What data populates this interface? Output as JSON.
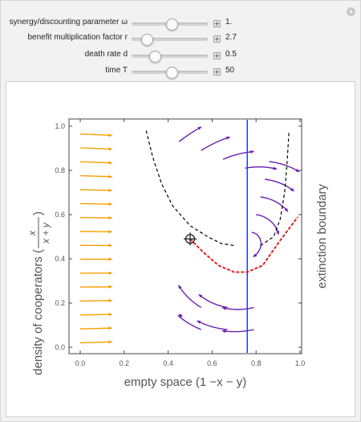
{
  "controls": [
    {
      "label": "synergy/discounting parameter ω",
      "value": "1.",
      "fraction": 0.52
    },
    {
      "label": "benefit multiplication factor r",
      "value": "2.7",
      "fraction": 0.19
    },
    {
      "label": "death rate d",
      "value": "0.5",
      "fraction": 0.29
    },
    {
      "label": "time T",
      "value": "50",
      "fraction": 0.52
    }
  ],
  "plot": {
    "xlabel": "empty space (1 −x − y)",
    "ylabel_prefix": "density of cooperators (",
    "ylabel_num": "x",
    "ylabel_den": "x + y",
    "ylabel_suffix": ")",
    "right_label": "extinction boundary",
    "x_ticks": [
      "0.0",
      "0.2",
      "0.4",
      "0.6",
      "0.8",
      "1.0"
    ],
    "y_ticks": [
      "0.0",
      "0.2",
      "0.4",
      "0.6",
      "0.8",
      "1.0"
    ],
    "colors": {
      "slow_arrow": "#f5a000",
      "fast_arrow": "#6a1fb0",
      "interior_equilibrium_line": "#1f3fe0",
      "trajectory": "#e02020",
      "separatrix": "#000000"
    }
  },
  "chart_data": {
    "type": "streamplot",
    "xlim": [
      0,
      1
    ],
    "ylim": [
      0,
      1
    ],
    "grid": false,
    "vertical_line_x": 0.76,
    "interior_equilibrium": [
      0.76,
      0.46
    ],
    "starting_point": [
      0.5,
      0.49
    ],
    "trajectory": [
      [
        0.5,
        0.49
      ],
      [
        0.56,
        0.43
      ],
      [
        0.63,
        0.37
      ],
      [
        0.7,
        0.34
      ],
      [
        0.76,
        0.34
      ],
      [
        0.83,
        0.37
      ],
      [
        0.9,
        0.47
      ],
      [
        0.99,
        0.59
      ]
    ],
    "separatrix_left": [
      [
        0.3,
        0.98
      ],
      [
        0.33,
        0.86
      ],
      [
        0.37,
        0.74
      ],
      [
        0.42,
        0.64
      ],
      [
        0.5,
        0.55
      ],
      [
        0.58,
        0.5
      ],
      [
        0.64,
        0.47
      ],
      [
        0.7,
        0.46
      ]
    ],
    "separatrix_right": [
      [
        0.82,
        0.46
      ],
      [
        0.88,
        0.5
      ],
      [
        0.91,
        0.58
      ],
      [
        0.93,
        0.7
      ],
      [
        0.94,
        0.82
      ],
      [
        0.95,
        0.98
      ]
    ]
  }
}
